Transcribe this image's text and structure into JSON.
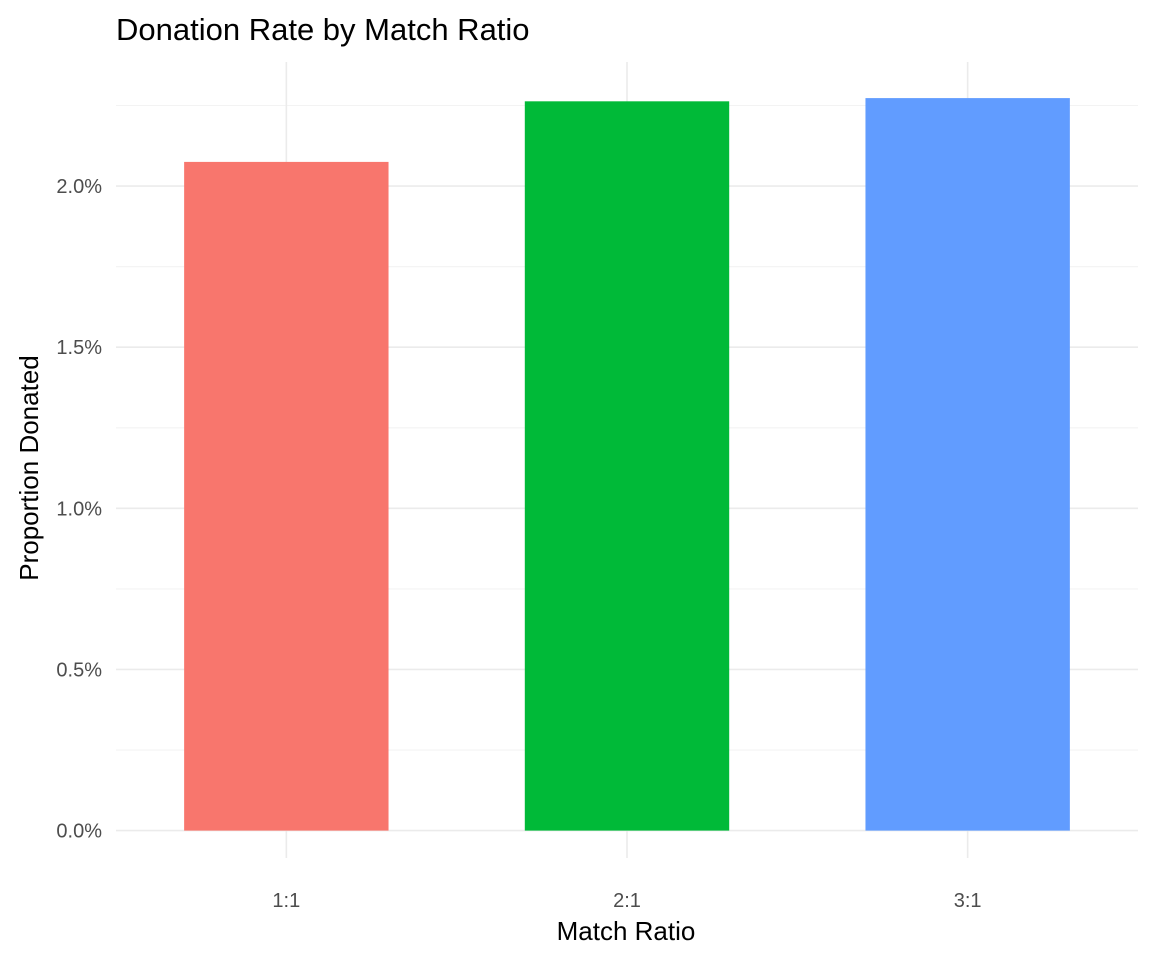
{
  "chart_data": {
    "type": "bar",
    "title": "Donation Rate by Match Ratio",
    "xlabel": "Match Ratio",
    "ylabel": "Proportion Donated",
    "categories": [
      "1:1",
      "2:1",
      "3:1"
    ],
    "values": [
      0.02075,
      0.02263,
      0.02273
    ],
    "colors": [
      "#F8766D",
      "#00BA38",
      "#619CFF"
    ],
    "yticks": [
      {
        "value": 0.0,
        "label": "0.0%"
      },
      {
        "value": 0.005,
        "label": "0.5%"
      },
      {
        "value": 0.01,
        "label": "1.0%"
      },
      {
        "value": 0.015,
        "label": "1.5%"
      },
      {
        "value": 0.02,
        "label": "2.0%"
      }
    ],
    "ylim": [
      -0.00085,
      0.02385
    ],
    "grid": true,
    "legend": "none"
  }
}
